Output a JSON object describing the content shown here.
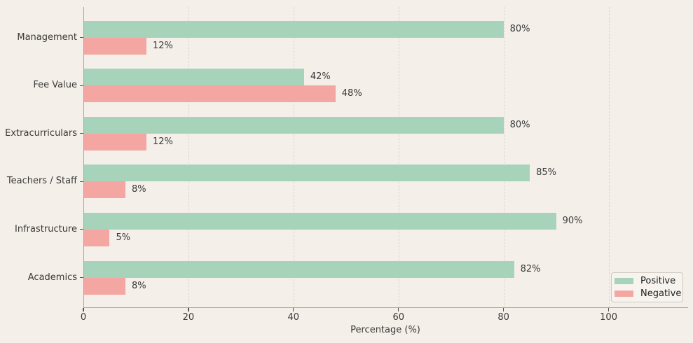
{
  "chart_data": {
    "type": "bar",
    "orientation": "horizontal",
    "title": "",
    "xlabel": "Percentage (%)",
    "ylabel": "",
    "categories": [
      "Management",
      "Fee Value",
      "Extracurriculars",
      "Teachers / Staff",
      "Infrastructure",
      "Academics"
    ],
    "series": [
      {
        "name": "Positive",
        "color": "#a7d3ba",
        "values": [
          80,
          42,
          80,
          85,
          90,
          82
        ]
      },
      {
        "name": "Negative",
        "color": "#f4a7a2",
        "values": [
          12,
          48,
          12,
          8,
          5,
          8
        ]
      }
    ],
    "value_labels": [
      [
        "80%",
        "42%",
        "80%",
        "85%",
        "90%",
        "82%"
      ],
      [
        "12%",
        "48%",
        "12%",
        "8%",
        "5%",
        "8%"
      ]
    ],
    "x_ticks": [
      "0",
      "20",
      "40",
      "60",
      "80",
      "100"
    ],
    "x_tick_values": [
      0,
      20,
      40,
      60,
      80,
      100
    ],
    "xlim": [
      0,
      115
    ],
    "grid": "vertical-dashed",
    "legend_position": "lower right",
    "legend_entries": [
      "Positive",
      "Negative"
    ],
    "colors": {
      "background": "#f4efe9",
      "grid": "#dad4cd",
      "spine": "#a6a5a1",
      "tick": "#555555",
      "text": "#3a3a3a",
      "legend_background": "#f7f3ee",
      "legend_border": "#cfc9c2"
    }
  }
}
